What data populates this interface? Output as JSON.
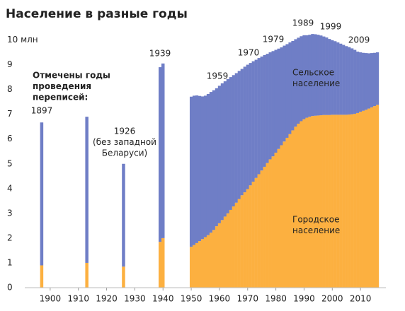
{
  "chart_data": {
    "type": "bar",
    "stacked": true,
    "title": "Население в разные годы",
    "x": [
      1897,
      1913,
      1926,
      1939,
      1940,
      1950,
      1951,
      1952,
      1953,
      1954,
      1955,
      1956,
      1957,
      1958,
      1959,
      1960,
      1961,
      1962,
      1963,
      1964,
      1965,
      1966,
      1967,
      1968,
      1969,
      1970,
      1971,
      1972,
      1973,
      1974,
      1975,
      1976,
      1977,
      1978,
      1979,
      1980,
      1981,
      1982,
      1983,
      1984,
      1985,
      1986,
      1987,
      1988,
      1989,
      1990,
      1991,
      1992,
      1993,
      1994,
      1995,
      1996,
      1997,
      1998,
      1999,
      2000,
      2001,
      2002,
      2003,
      2004,
      2005,
      2006,
      2007,
      2008,
      2009,
      2010,
      2011,
      2012,
      2013,
      2014,
      2015,
      2016
    ],
    "series": [
      {
        "name": "Городское население",
        "color": "#fcb040",
        "values": [
          0.9,
          1.0,
          0.85,
          1.85,
          2.0,
          1.65,
          1.72,
          1.8,
          1.88,
          1.96,
          2.04,
          2.12,
          2.22,
          2.33,
          2.48,
          2.6,
          2.73,
          2.87,
          3.0,
          3.14,
          3.28,
          3.43,
          3.58,
          3.73,
          3.85,
          3.98,
          4.13,
          4.28,
          4.43,
          4.58,
          4.73,
          4.88,
          5.03,
          5.18,
          5.3,
          5.45,
          5.6,
          5.75,
          5.9,
          6.05,
          6.2,
          6.35,
          6.5,
          6.62,
          6.72,
          6.8,
          6.86,
          6.9,
          6.93,
          6.94,
          6.95,
          6.96,
          6.97,
          6.97,
          6.97,
          6.98,
          6.98,
          6.98,
          6.98,
          6.98,
          6.98,
          6.99,
          7.0,
          7.02,
          7.05,
          7.1,
          7.14,
          7.18,
          7.23,
          7.28,
          7.33,
          7.38
        ]
      },
      {
        "name": "Сельское население",
        "color": "#6f7ec6",
        "values": [
          5.77,
          5.9,
          4.15,
          7.05,
          7.05,
          6.06,
          6.03,
          5.96,
          5.86,
          5.76,
          5.71,
          5.7,
          5.68,
          5.64,
          5.57,
          5.55,
          5.52,
          5.46,
          5.42,
          5.36,
          5.3,
          5.23,
          5.17,
          5.1,
          5.07,
          5.02,
          4.94,
          4.86,
          4.77,
          4.69,
          4.6,
          4.51,
          4.41,
          4.32,
          4.25,
          4.15,
          4.05,
          3.95,
          3.87,
          3.78,
          3.7,
          3.61,
          3.53,
          3.47,
          3.43,
          3.39,
          3.33,
          3.31,
          3.31,
          3.29,
          3.26,
          3.22,
          3.17,
          3.13,
          3.07,
          3.01,
          2.97,
          2.92,
          2.87,
          2.82,
          2.77,
          2.72,
          2.66,
          2.58,
          2.48,
          2.4,
          2.34,
          2.29,
          2.23,
          2.19,
          2.15,
          2.12
        ]
      }
    ],
    "xlim": [
      1891,
      2019
    ],
    "xticks": [
      1900,
      1910,
      1920,
      1930,
      1940,
      1950,
      1960,
      1970,
      1980,
      1990,
      2000,
      2010
    ],
    "ylim": [
      0,
      10.3
    ],
    "yticks": [
      0,
      1,
      2,
      3,
      4,
      5,
      6,
      7,
      8,
      9,
      {
        "value": 10,
        "label": "10 млн"
      }
    ],
    "grid": false,
    "annotations": [
      {
        "text": [
          "Отмечены годы",
          "проведения",
          "переписей:"
        ]
      },
      {
        "text": [
          "1897"
        ]
      },
      {
        "text": [
          "1926",
          "(без западной",
          "Беларуси)"
        ]
      },
      {
        "text": [
          "1939"
        ]
      },
      {
        "text": [
          "1959"
        ]
      },
      {
        "text": [
          "1970"
        ]
      },
      {
        "text": [
          "1979"
        ]
      },
      {
        "text": [
          "1989"
        ]
      },
      {
        "text": [
          "1999"
        ]
      },
      {
        "text": [
          "2009"
        ]
      },
      {
        "text": [
          "Сельское",
          "население"
        ]
      },
      {
        "text": [
          "Городское",
          "население"
        ]
      }
    ]
  }
}
